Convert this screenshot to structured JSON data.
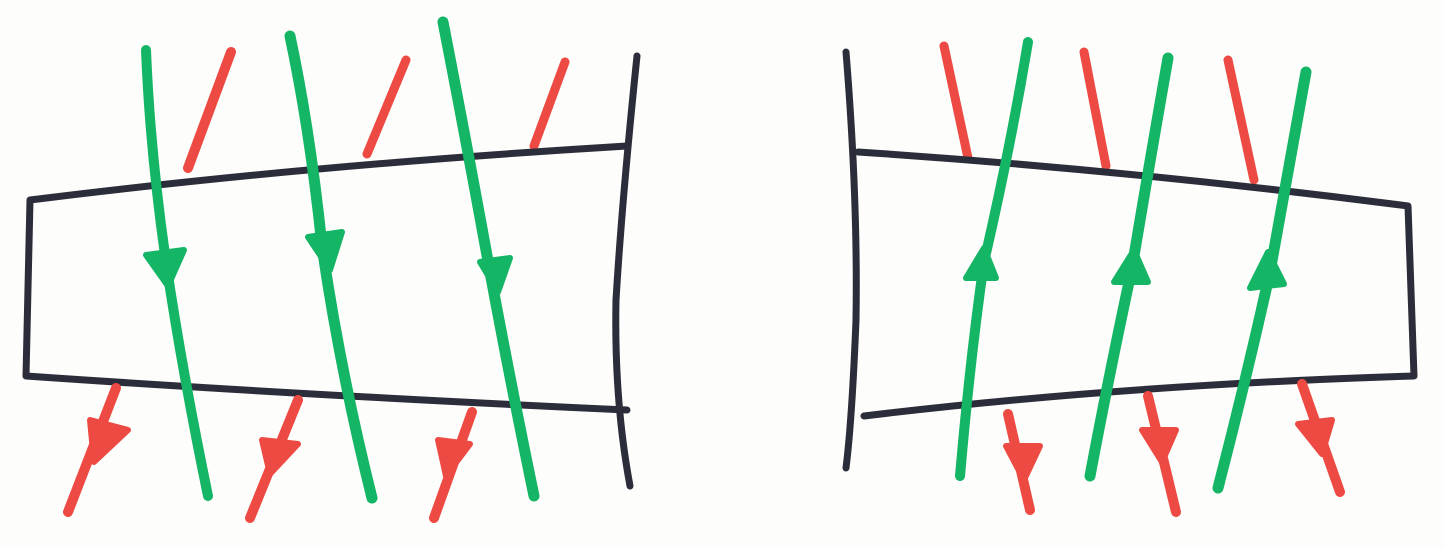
{
  "colors": {
    "paper": "#fdfdfb",
    "outline": "#2b2d3a",
    "green": "#14b565",
    "red": "#ee4a44"
  },
  "figures": [
    {
      "id": "left",
      "green_arrow_direction": "down",
      "red_stroke_count": 6,
      "green_line_count": 3
    },
    {
      "id": "right",
      "green_arrow_direction": "up",
      "red_stroke_count": 6,
      "green_line_count": 3
    }
  ]
}
